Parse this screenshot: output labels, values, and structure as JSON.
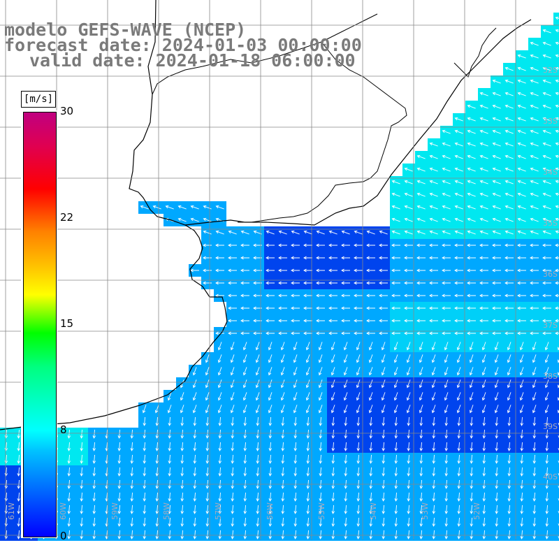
{
  "title": {
    "line1": "modelo GEFS-WAVE (NCEP)",
    "line2": "forecast date: 2024-01-03 00:00:00",
    "line3": "valid date: 2024-01-18 06:00:00"
  },
  "colorbar": {
    "units": "[m/s]",
    "ticks": [
      "30",
      "22",
      "15",
      "8",
      "0"
    ],
    "tick_values": [
      30,
      22,
      15,
      8,
      0
    ],
    "colors": [
      "#0000ff",
      "#00c0ff",
      "#00ffff",
      "#00ff00",
      "#ffff00",
      "#ff8000",
      "#ff0000",
      "#c00080"
    ]
  },
  "lat_labels": [
    "32S",
    "33S",
    "34S",
    "35S",
    "36S",
    "37S",
    "38S",
    "39S",
    "40S"
  ],
  "lon_labels": [
    "61W",
    "60W",
    "59W",
    "58W",
    "57W",
    "56W",
    "55W",
    "54W",
    "53W",
    "52W"
  ],
  "colors": {
    "land": "#ffffff",
    "coast": "#000000",
    "grid": "#888888",
    "ocean_low": "#0044ee",
    "ocean_mid": "#00a8ff",
    "ocean_high": "#00e8f0",
    "arrow": "#ffffff"
  }
}
